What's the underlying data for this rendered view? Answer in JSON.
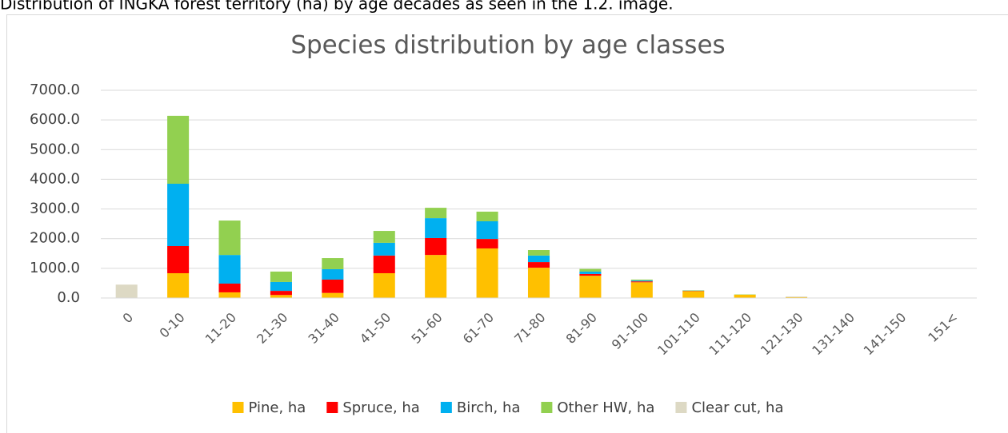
{
  "caption": "Distribution of INGKA forest territory (ha) by age decades as seen in the 1.2. image.",
  "chart_data": {
    "type": "stacked_bar",
    "title": "Species distribution by age classes",
    "categories": [
      "0",
      "0-10",
      "11-20",
      "21-30",
      "31-40",
      "41-50",
      "51-60",
      "61-70",
      "71-80",
      "81-90",
      "91-100",
      "101-110",
      "111-120",
      "121-130",
      "131-140",
      "141-150",
      "151<"
    ],
    "series": [
      {
        "name": "Pine, ha",
        "color": "#ffc000",
        "values": [
          0,
          835,
          190,
          100,
          170,
          835,
          1450,
          1670,
          1020,
          750,
          530,
          230,
          110,
          30,
          0,
          0,
          0
        ]
      },
      {
        "name": "Spruce, ha",
        "color": "#ff0000",
        "values": [
          0,
          915,
          295,
          140,
          450,
          595,
          570,
          320,
          190,
          60,
          30,
          10,
          0,
          0,
          0,
          0,
          0
        ]
      },
      {
        "name": "Birch, ha",
        "color": "#00b0f0",
        "values": [
          0,
          2100,
          965,
          300,
          350,
          430,
          670,
          595,
          220,
          80,
          30,
          10,
          0,
          0,
          0,
          0,
          0
        ]
      },
      {
        "name": "Other HW, ha",
        "color": "#92d050",
        "values": [
          0,
          2290,
          1160,
          350,
          375,
          400,
          350,
          325,
          185,
          90,
          30,
          10,
          10,
          0,
          0,
          0,
          0
        ]
      },
      {
        "name": "Clear cut, ha",
        "color": "#ddd9c4",
        "values": [
          450,
          0,
          0,
          0,
          0,
          0,
          0,
          0,
          0,
          0,
          0,
          0,
          0,
          20,
          0,
          0,
          0
        ]
      }
    ],
    "ylim": [
      0,
      7000
    ],
    "yticks": [
      {
        "value": 0,
        "label": "0.0"
      },
      {
        "value": 1000,
        "label": "1000.0"
      },
      {
        "value": 2000,
        "label": "2000.0"
      },
      {
        "value": 3000,
        "label": "3000.0"
      },
      {
        "value": 4000,
        "label": "4000.0"
      },
      {
        "value": 5000,
        "label": "5000.0"
      },
      {
        "value": 6000,
        "label": "6000.0"
      },
      {
        "value": 7000,
        "label": "7000.0"
      }
    ],
    "grid": true,
    "legend": "bottom"
  }
}
